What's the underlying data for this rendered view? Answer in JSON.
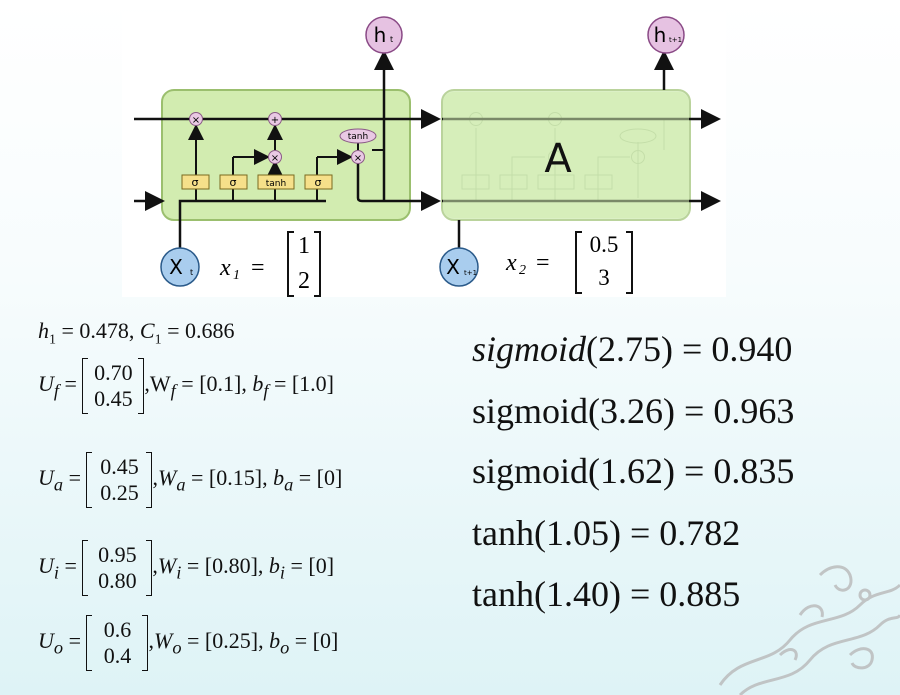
{
  "diagram": {
    "cell1": {
      "gates": [
        "σ",
        "σ",
        "tanh",
        "σ"
      ],
      "ops": [
        "×",
        "+",
        "×",
        "×"
      ],
      "tanh_label": "tanh",
      "input_label": "X",
      "input_sub": "t",
      "output_label": "h",
      "output_sub": "t"
    },
    "cell2": {
      "label": "A",
      "input_label": "X",
      "input_sub": "t+1",
      "output_label": "h",
      "output_sub": "t+1"
    },
    "x1": {
      "name": "x",
      "sub": "1",
      "values": [
        "1",
        "2"
      ]
    },
    "x2": {
      "name": "x",
      "sub": "2",
      "values": [
        "0.5",
        "3"
      ]
    }
  },
  "init": {
    "h_label": "h",
    "h_sub": "1",
    "h_value": "0.478",
    "c_label": "C",
    "c_sub": "1",
    "c_value": "0.686"
  },
  "params": [
    {
      "U": "U",
      "sub": "f",
      "U_vals": [
        "0.70",
        "0.45"
      ],
      "W": "W",
      "W_val": "[0.1]",
      "b": "b",
      "b_val": "[1.0]"
    },
    {
      "U": "U",
      "sub": "a",
      "U_vals": [
        "0.45",
        "0.25"
      ],
      "W": "W",
      "W_val": "[0.15]",
      "b": "b",
      "b_val": "[0]"
    },
    {
      "U": "U",
      "sub": "i",
      "U_vals": [
        "0.95",
        "0.80"
      ],
      "W": "W",
      "W_val": "[0.80]",
      "b": "b",
      "b_val": "[0]"
    },
    {
      "U": "U",
      "sub": "o",
      "U_vals": [
        "0.6",
        "0.4"
      ],
      "W": "W",
      "W_val": "[0.25]",
      "b": "b",
      "b_val": "[0]"
    }
  ],
  "results": [
    {
      "fn": "sigmoid",
      "arg": "2.75",
      "value": "0.940",
      "italic": true
    },
    {
      "fn": "sigmoid",
      "arg": "3.26",
      "value": "0.963",
      "italic": false
    },
    {
      "fn": "sigmoid",
      "arg": "1.62",
      "value": "0.835",
      "italic": false
    },
    {
      "fn": "tanh",
      "arg": "1.05",
      "value": "0.782",
      "italic": false
    },
    {
      "fn": "tanh",
      "arg": "1.40",
      "value": "0.885",
      "italic": false
    }
  ],
  "colors": {
    "cell_fill": "#d2ecb0",
    "cell_stroke": "#9bbf6e",
    "gate_fill": "#f6e08a",
    "op_fill": "#e9c9e4",
    "io_fill": "#a9cdee",
    "out_fill": "#e6c2e2"
  }
}
